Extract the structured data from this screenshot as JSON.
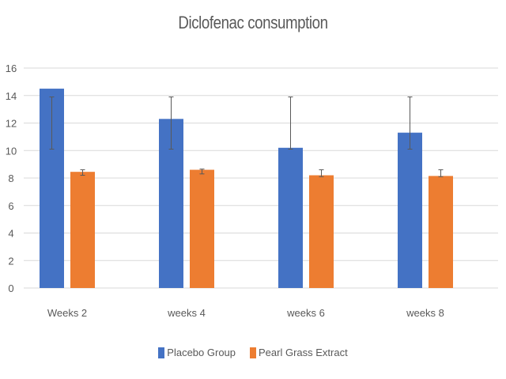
{
  "chart_data": {
    "type": "bar",
    "title": "Diclofenac consumption",
    "xlabel": "",
    "ylabel": "",
    "ylim": [
      0,
      16
    ],
    "yticks": [
      0,
      2,
      4,
      6,
      8,
      10,
      12,
      14,
      16
    ],
    "grid": true,
    "legend_position": "bottom",
    "categories": [
      "Weeks 2",
      "weeks 4",
      "weeks 6",
      "weeks 8"
    ],
    "series": [
      {
        "name": "Placebo Group",
        "color": "#4472C4",
        "values": [
          14.5,
          12.3,
          10.2,
          11.3
        ],
        "error_low": [
          10.1,
          10.1,
          10.1,
          10.1
        ],
        "error_high": [
          13.9,
          13.9,
          13.9,
          13.9
        ]
      },
      {
        "name": "Pearl Grass Extract",
        "color": "#ED7D31",
        "values": [
          8.45,
          8.6,
          8.2,
          8.15
        ],
        "error_low": [
          8.2,
          8.3,
          8.1,
          8.1
        ],
        "error_high": [
          8.6,
          8.65,
          8.6,
          8.6
        ]
      }
    ]
  }
}
